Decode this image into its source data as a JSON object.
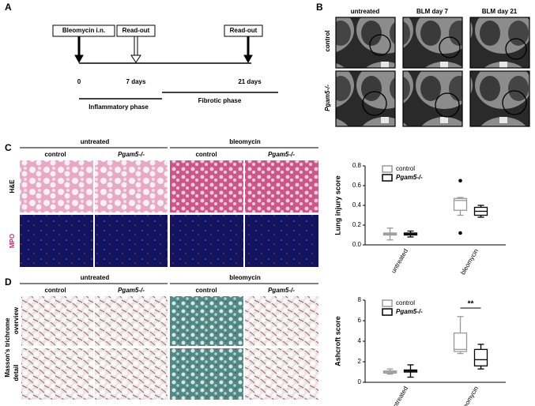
{
  "panel_a": {
    "label": "A",
    "events": [
      "Bleomycin i.n.",
      "Read-out",
      "Read-out"
    ],
    "timepoints": [
      "0",
      "7 days",
      "21 days"
    ],
    "phases": [
      "Inflammatory phase",
      "Fibrotic phase"
    ]
  },
  "panel_b": {
    "label": "B",
    "columns": [
      "untreated",
      "BLM day 7",
      "BLM day 21"
    ],
    "rows": [
      "control",
      "Pgam5-/-"
    ]
  },
  "panel_c": {
    "label": "C",
    "groups": [
      "untreated",
      "bleomycin"
    ],
    "columns": [
      "control",
      "Pgam5-/-",
      "control",
      "Pgam5-/-"
    ],
    "rows": [
      "H&E",
      "MPO"
    ]
  },
  "panel_d": {
    "label": "D",
    "groups": [
      "untreated",
      "bleomycin"
    ],
    "columns": [
      "control",
      "Pgam5-/-",
      "control",
      "Pgam5-/-"
    ],
    "stain": "Masson's trichrome",
    "rows": [
      "overview",
      "detail"
    ]
  },
  "chart_data": [
    {
      "type": "box",
      "y_label": "Lung injury score",
      "categories": [
        "untreated",
        "bleomycin"
      ],
      "ylim": [
        0,
        0.8
      ],
      "yticks": [
        {
          "value": 0,
          "label": "0.0"
        },
        {
          "value": 0.2,
          "label": "0.2"
        },
        {
          "value": 0.4,
          "label": "0.4"
        },
        {
          "value": 0.6,
          "label": "0.6"
        },
        {
          "value": 0.8,
          "label": "0.8"
        }
      ],
      "series": [
        {
          "name": "control",
          "color": "#9a9a9a",
          "values": [
            {
              "min": 0.05,
              "q1": 0.1,
              "median": 0.11,
              "q3": 0.12,
              "max": 0.17
            },
            {
              "min": 0.3,
              "q1": 0.35,
              "median": 0.45,
              "q3": 0.47,
              "max": 0.48
            }
          ],
          "outliers": [
            [],
            [
              0.65,
              0.12
            ]
          ]
        },
        {
          "name": "Pgam5-/-",
          "color": "#000000",
          "values": [
            {
              "min": 0.08,
              "q1": 0.1,
              "median": 0.11,
              "q3": 0.12,
              "max": 0.14
            },
            {
              "min": 0.28,
              "q1": 0.3,
              "median": 0.34,
              "q3": 0.38,
              "max": 0.4
            }
          ],
          "outliers": [
            [],
            []
          ]
        }
      ]
    },
    {
      "type": "box",
      "y_label": "Ashcroft score",
      "annotation": "**",
      "categories": [
        "untreated",
        "bleomycin"
      ],
      "ylim": [
        0,
        8
      ],
      "yticks": [
        0,
        2,
        4,
        6,
        8
      ],
      "series": [
        {
          "name": "control",
          "color": "#9a9a9a",
          "values": [
            {
              "min": 0.8,
              "q1": 0.9,
              "median": 1.0,
              "q3": 1.1,
              "max": 1.3
            },
            {
              "min": 2.8,
              "q1": 3.0,
              "median": 3.2,
              "q3": 4.8,
              "max": 6.4
            }
          ],
          "outliers": [
            [],
            []
          ]
        },
        {
          "name": "Pgam5-/-",
          "color": "#000000",
          "values": [
            {
              "min": 0.5,
              "q1": 1.0,
              "median": 1.1,
              "q3": 1.2,
              "max": 1.7
            },
            {
              "min": 1.3,
              "q1": 1.6,
              "median": 2.2,
              "q3": 3.2,
              "max": 3.7
            }
          ],
          "outliers": [
            [],
            []
          ]
        }
      ]
    }
  ]
}
